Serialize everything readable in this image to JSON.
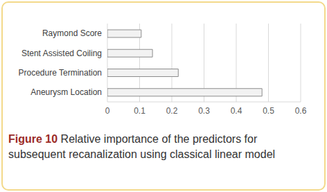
{
  "chart_data": {
    "type": "bar",
    "orientation": "horizontal",
    "title": "Figure 10",
    "subtitle": "Relative importance of the predictors for subsequent recanalization using classical linear model",
    "categories": [
      "Raymond Score",
      "Stent Assisted Coiling",
      "Procedure Termination",
      "Aneurysm Location"
    ],
    "values": [
      0.105,
      0.14,
      0.22,
      0.48
    ],
    "color": "#f2f2f2",
    "xlim": [
      0,
      0.6
    ],
    "xticks": [
      0,
      0.1,
      0.2,
      0.3,
      0.4,
      0.5,
      0.6
    ],
    "grid": true
  }
}
